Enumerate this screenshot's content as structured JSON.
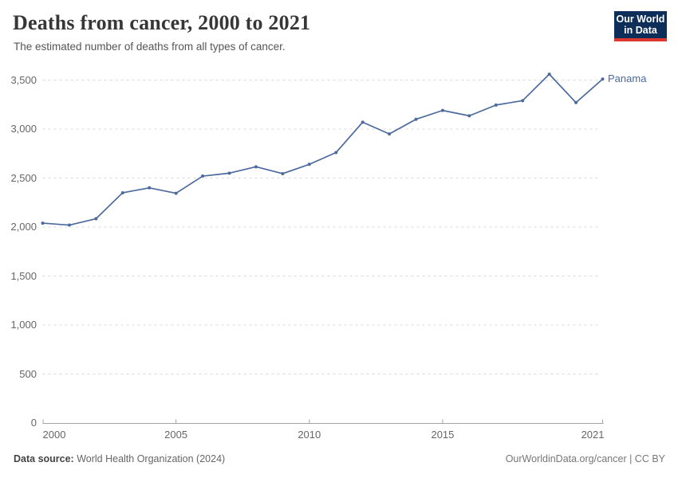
{
  "header": {
    "title": "Deaths from cancer, 2000 to 2021",
    "subtitle": "The estimated number of deaths from all types of cancer.",
    "logo_line1": "Our World",
    "logo_line2": "in Data"
  },
  "footer": {
    "source_label": "Data source:",
    "source_value": " World Health Organization (2024)",
    "credit": "OurWorldinData.org/cancer | CC BY"
  },
  "colors": {
    "line": "#4C6A9C",
    "grid": "#d9d9d9",
    "axis": "#a3a3a3",
    "title": "#373737",
    "tick_text": "#666666",
    "logo_bg": "#0d2e58",
    "logo_underline": "#dc3830"
  },
  "chart_data": {
    "type": "line",
    "title": "Deaths from cancer, 2000 to 2021",
    "subtitle": "The estimated number of deaths from all types of cancer.",
    "xlabel": "",
    "ylabel": "",
    "xlim": [
      2000,
      2021
    ],
    "ylim": [
      0,
      3500
    ],
    "grid": "horizontal-dashed",
    "legend_position": "end-of-line",
    "yticks": [
      0,
      500,
      1000,
      1500,
      2000,
      2500,
      3000,
      3500
    ],
    "ytick_labels": [
      "0",
      "500",
      "1,000",
      "1,500",
      "2,000",
      "2,500",
      "3,000",
      "3,500"
    ],
    "xticks": [
      2000,
      2005,
      2010,
      2015,
      2021
    ],
    "xtick_labels": [
      "2000",
      "2005",
      "2010",
      "2015",
      "2021"
    ],
    "x": [
      2000,
      2001,
      2002,
      2003,
      2004,
      2005,
      2006,
      2007,
      2008,
      2009,
      2010,
      2011,
      2012,
      2013,
      2014,
      2015,
      2016,
      2017,
      2018,
      2019,
      2020,
      2021
    ],
    "series": [
      {
        "name": "Panama",
        "color": "#4C6A9C",
        "values": [
          2040,
          2020,
          2085,
          2350,
          2400,
          2345,
          2520,
          2550,
          2615,
          2545,
          2640,
          2760,
          3070,
          2950,
          3100,
          3190,
          3135,
          3245,
          3290,
          3560,
          3270,
          3510
        ]
      }
    ]
  }
}
